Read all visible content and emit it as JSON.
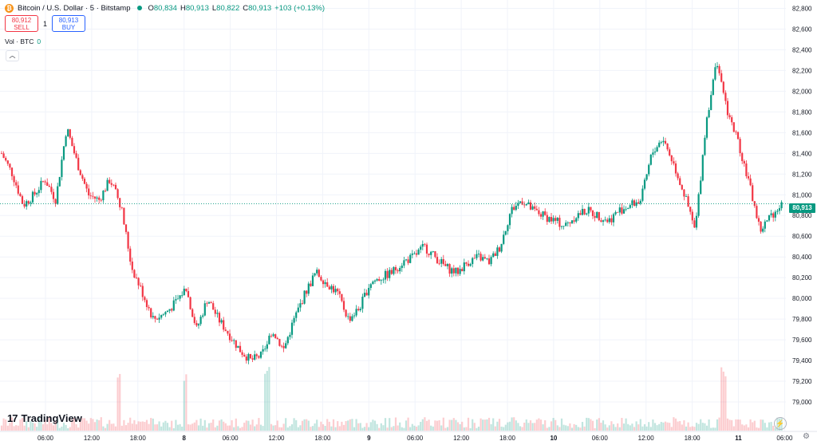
{
  "header": {
    "symbol_title": "Bitcoin / U.S. Dollar · 5 · Bitstamp",
    "ohlc": {
      "open_key": "O",
      "open": "80,834",
      "high_key": "H",
      "high": "80,913",
      "low_key": "L",
      "low": "80,822",
      "close_key": "C",
      "close": "80,913",
      "change": "+103 (+0.13%)"
    },
    "icon": "bitcoin-icon"
  },
  "trade": {
    "sell_price": "80,912",
    "sell_label": "SELL",
    "spread": "1",
    "buy_price": "80,913",
    "buy_label": "BUY"
  },
  "volume_indicator": {
    "label": "Vol · BTC",
    "value": "0"
  },
  "watermark": "TradingView",
  "current_price_tag": "80,913",
  "colors": {
    "up": "#089981",
    "down": "#f23645",
    "price_line": "#089981"
  },
  "chart_data": {
    "type": "candlestick",
    "timeframe": "5",
    "exchange": "Bitstamp",
    "y_axis_ticks": [
      "82,800",
      "82,600",
      "82,400",
      "82,200",
      "82,000",
      "81,800",
      "81,600",
      "81,400",
      "81,200",
      "81,000",
      "80,800",
      "80,600",
      "80,400",
      "80,200",
      "80,000",
      "79,800",
      "79,600",
      "79,400",
      "79,200",
      "79,000"
    ],
    "ylim": [
      78900,
      82850
    ],
    "x_axis_ticks": [
      "06:00",
      "12:00",
      "18:00",
      "8",
      "06:00",
      "12:00",
      "18:00",
      "9",
      "06:00",
      "12:00",
      "18:00",
      "10",
      "06:00",
      "12:00",
      "18:00",
      "11",
      "06:00"
    ],
    "current_price": 80913,
    "approx_close_path": [
      [
        0,
        81400
      ],
      [
        1,
        81200
      ],
      [
        2,
        80900
      ],
      [
        3,
        81000
      ],
      [
        4,
        81150
      ],
      [
        5,
        80950
      ],
      [
        6,
        81650
      ],
      [
        7,
        81300
      ],
      [
        8,
        81000
      ],
      [
        9,
        80950
      ],
      [
        10,
        81150
      ],
      [
        11,
        80900
      ],
      [
        12,
        80300
      ],
      [
        13,
        80050
      ],
      [
        14,
        79800
      ],
      [
        15,
        79850
      ],
      [
        16,
        79950
      ],
      [
        17,
        80100
      ],
      [
        18,
        79700
      ],
      [
        19,
        80000
      ],
      [
        20,
        79800
      ],
      [
        21,
        79650
      ],
      [
        22,
        79500
      ],
      [
        23,
        79400
      ],
      [
        24,
        79450
      ],
      [
        25,
        79700
      ],
      [
        26,
        79500
      ],
      [
        27,
        79800
      ],
      [
        28,
        80050
      ],
      [
        29,
        80250
      ],
      [
        30,
        80150
      ],
      [
        31,
        80050
      ],
      [
        32,
        79800
      ],
      [
        33,
        79900
      ],
      [
        34,
        80150
      ],
      [
        35,
        80200
      ],
      [
        36,
        80250
      ],
      [
        37,
        80350
      ],
      [
        38,
        80400
      ],
      [
        39,
        80500
      ],
      [
        40,
        80400
      ],
      [
        41,
        80300
      ],
      [
        42,
        80250
      ],
      [
        43,
        80350
      ],
      [
        44,
        80400
      ],
      [
        45,
        80350
      ],
      [
        46,
        80500
      ],
      [
        47,
        80850
      ],
      [
        48,
        80950
      ],
      [
        49,
        80850
      ],
      [
        50,
        80800
      ],
      [
        51,
        80750
      ],
      [
        52,
        80700
      ],
      [
        53,
        80800
      ],
      [
        54,
        80850
      ],
      [
        55,
        80800
      ],
      [
        56,
        80750
      ],
      [
        57,
        80850
      ],
      [
        58,
        80900
      ],
      [
        59,
        80950
      ],
      [
        60,
        81400
      ],
      [
        61,
        81550
      ],
      [
        62,
        81300
      ],
      [
        63,
        81000
      ],
      [
        64,
        80650
      ],
      [
        65,
        81700
      ],
      [
        66,
        82300
      ],
      [
        67,
        81800
      ],
      [
        68,
        81500
      ],
      [
        69,
        81100
      ],
      [
        70,
        80650
      ],
      [
        71,
        80800
      ],
      [
        72,
        80913
      ]
    ],
    "volume_spikes": [
      "18:00 day 7",
      "around 8",
      "18:00 day 10",
      "18:00 day 10 (second)"
    ]
  }
}
